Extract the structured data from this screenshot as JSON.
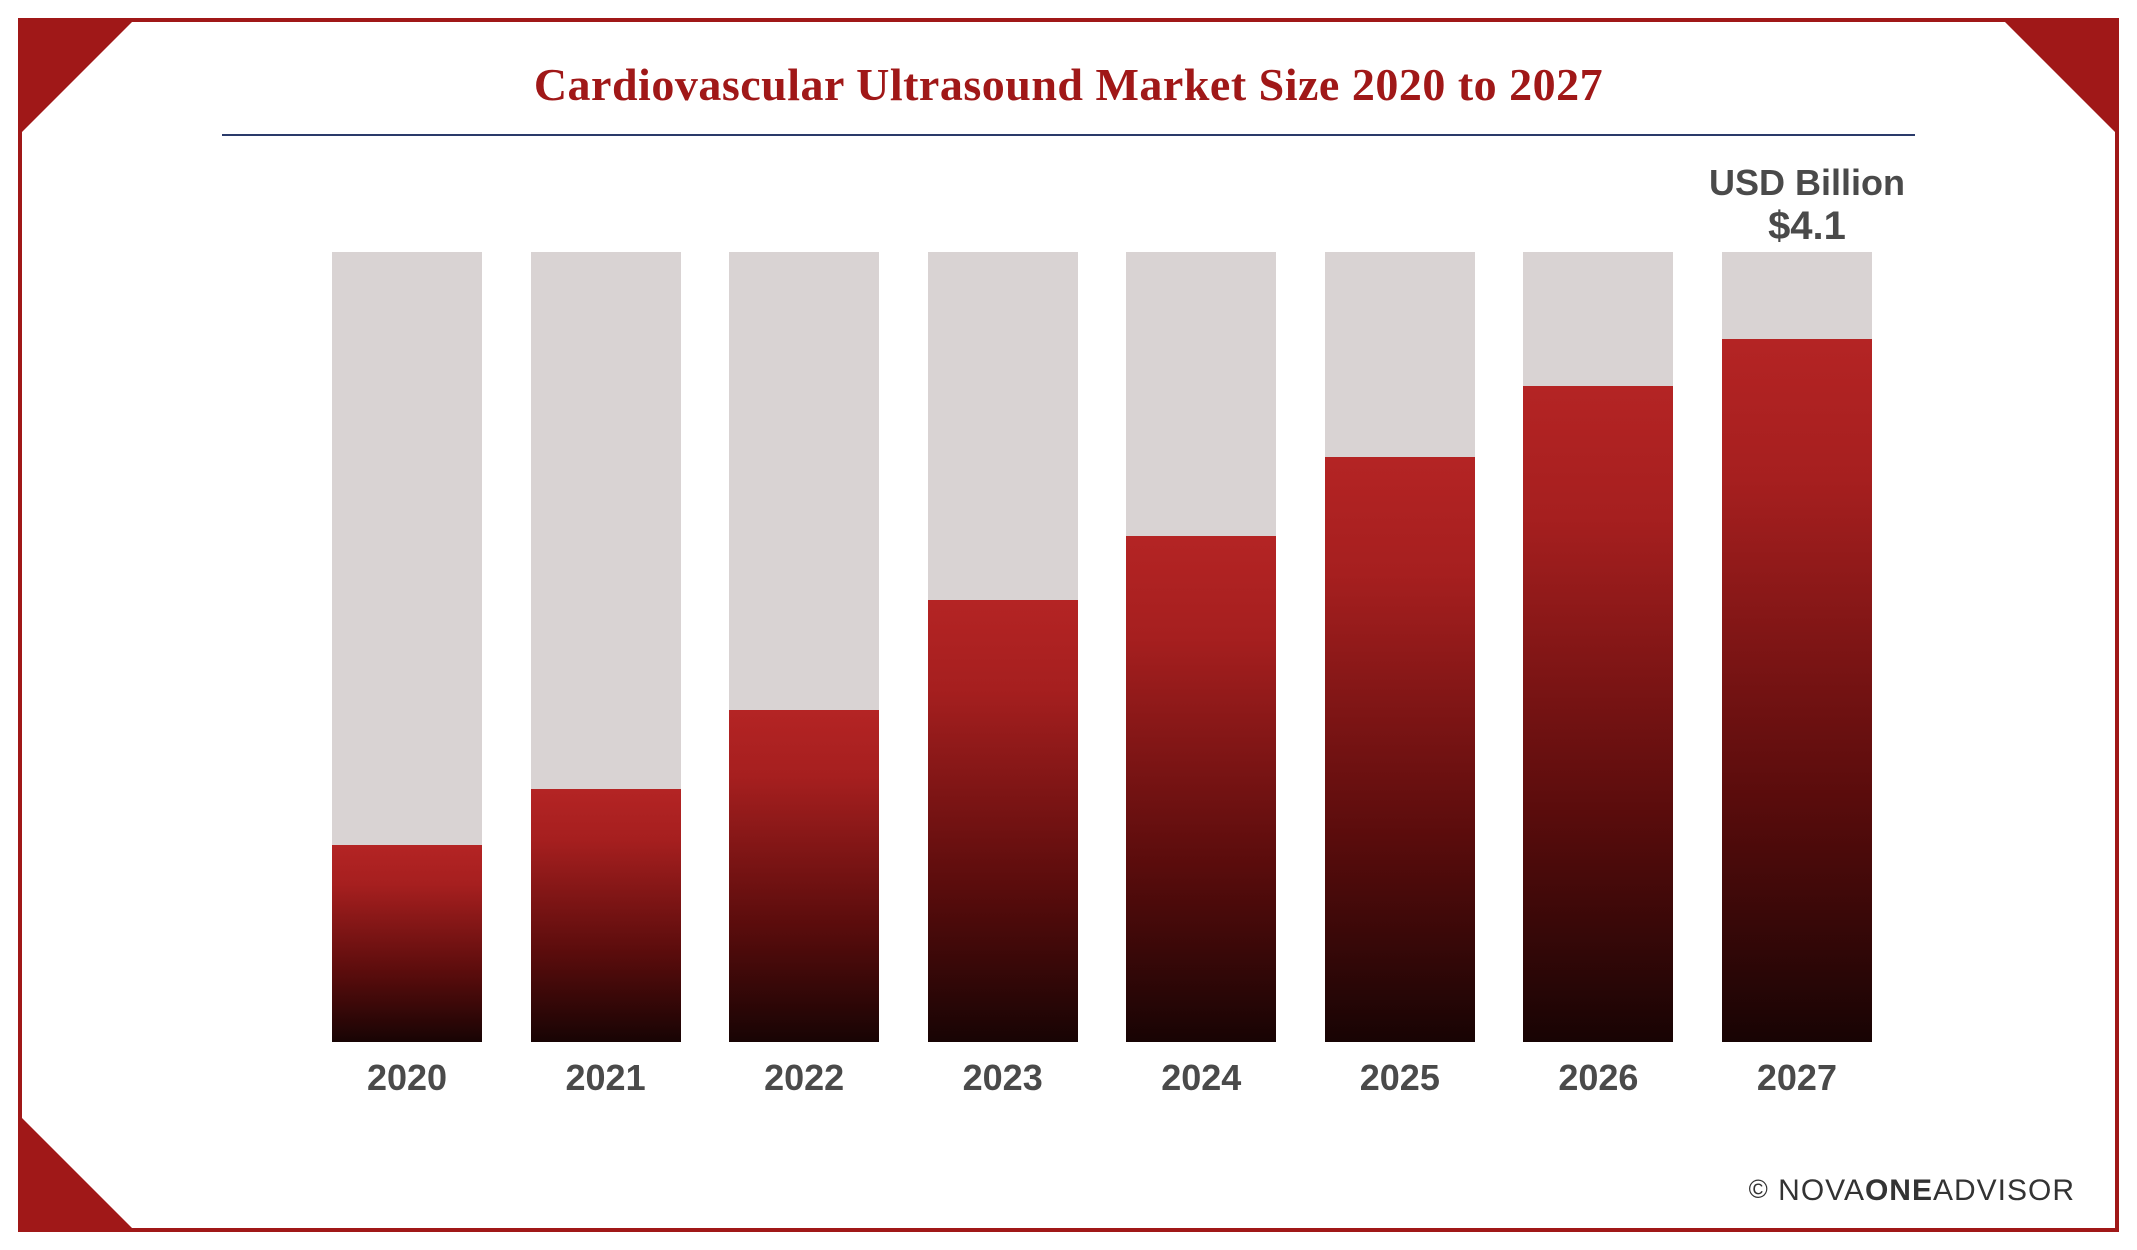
{
  "chart": {
    "type": "bar",
    "title": "Cardiovascular Ultrasound Market Size 2020 to 2027",
    "title_color": "#a01818",
    "title_fontsize": 46,
    "title_underline_color": "#2a3a6a",
    "categories": [
      "2020",
      "2021",
      "2022",
      "2023",
      "2024",
      "2025",
      "2026",
      "2027"
    ],
    "fill_percent": [
      25,
      32,
      42,
      56,
      64,
      74,
      83,
      89
    ],
    "callout": {
      "index": 7,
      "unit_label": "USD Billion",
      "value_label": "$4.1"
    },
    "bar_bg_color": "#d9d3d3",
    "bar_fill_gradient_top": "#b42424",
    "bar_fill_gradient_mid": "#a61f1f",
    "bar_fill_gradient_low": "#5a0c0c",
    "bar_fill_gradient_bottom": "#180404",
    "x_label_fontsize": 36,
    "x_label_color": "#4a4a4a",
    "background_color": "#ffffff",
    "frame_border_color": "#a01818",
    "corner_triangle_color": "#a01818"
  },
  "attribution": {
    "copyright": "©",
    "brand_part1": "NOVA",
    "brand_part2": "ONE",
    "brand_part3": "ADVISOR"
  }
}
